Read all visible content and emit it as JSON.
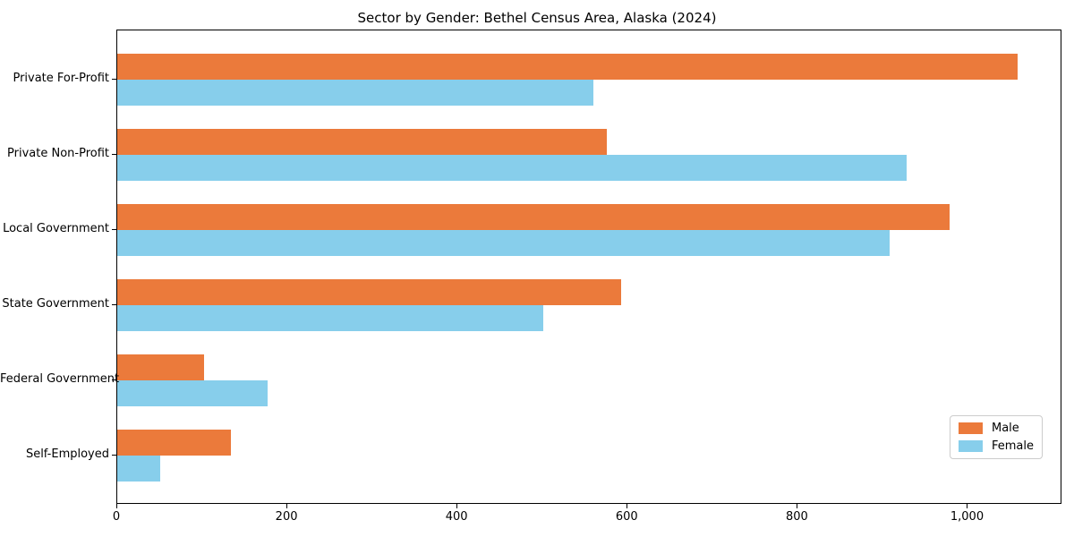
{
  "chart_data": {
    "type": "bar",
    "orientation": "horizontal",
    "title": "Sector by Gender: Bethel Census Area, Alaska (2024)",
    "categories": [
      "Private For-Profit",
      "Private Non-Profit",
      "Local Government",
      "State Government",
      "Federal Government",
      "Self-Employed"
    ],
    "series": [
      {
        "name": "Male",
        "color": "#EB7A3B",
        "values": [
          1058,
          575,
          978,
          592,
          102,
          134
        ]
      },
      {
        "name": "Female",
        "color": "#87CEEB",
        "values": [
          560,
          928,
          908,
          501,
          177,
          50
        ]
      }
    ],
    "xlim": [
      0,
      1111
    ],
    "x_ticks": [
      {
        "value": 0,
        "label": "0"
      },
      {
        "value": 200,
        "label": "200"
      },
      {
        "value": 400,
        "label": "400"
      },
      {
        "value": 600,
        "label": "600"
      },
      {
        "value": 800,
        "label": "800"
      },
      {
        "value": 1000,
        "label": "1,000"
      }
    ],
    "xlabel": "",
    "ylabel": "",
    "grid": false,
    "legend_position": "lower right"
  }
}
